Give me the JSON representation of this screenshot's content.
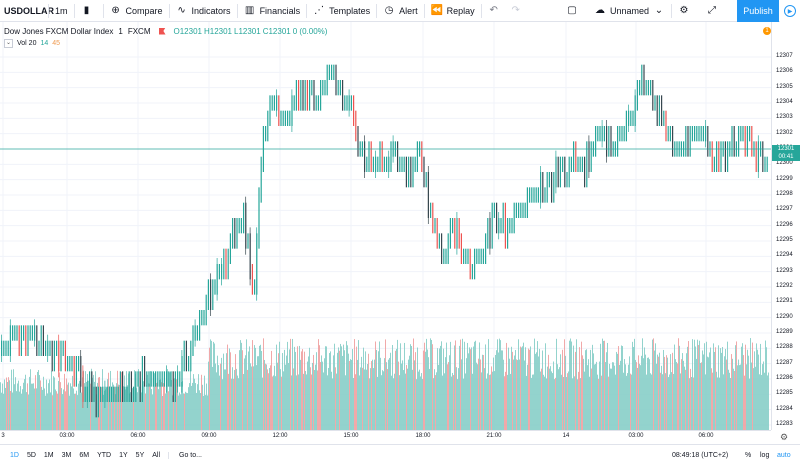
{
  "toolbar": {
    "symbol": "USDOLLAR",
    "interval": "1m",
    "compare": "Compare",
    "indicators": "Indicators",
    "financials": "Financials",
    "templates": "Templates",
    "alert": "Alert",
    "replay": "Replay",
    "layout_name": "Unnamed",
    "publish": "Publish"
  },
  "legend": {
    "title": "Dow Jones FXCM Dollar Index",
    "interval": "1",
    "source": "FXCM",
    "open": "O12301",
    "high": "H12301",
    "low": "L12301",
    "close": "C12301",
    "change": "0 (0.00%)"
  },
  "volume_legend": {
    "name": "Vol 20",
    "value1": "14",
    "value2": "45"
  },
  "alert_badge": "1",
  "price_label": "12301",
  "countdown": "00:41",
  "colors": {
    "up": "#26a69a",
    "down": "#ef5350",
    "volume_up": "#80cbc4",
    "volume_down": "#ef9a9a",
    "accent": "#2196f3",
    "grid": "#f0f3fa"
  },
  "chart_data": {
    "type": "candlestick",
    "y_axis_ticks": [
      "12307",
      "12306",
      "12305",
      "12304",
      "12303",
      "12302",
      "12301",
      "12300",
      "12299",
      "12298",
      "12297",
      "12296",
      "12295",
      "12294",
      "12293",
      "12292",
      "12291",
      "12290",
      "12289",
      "12288",
      "12287",
      "12286",
      "12285",
      "12284",
      "12283"
    ],
    "x_axis_ticks": [
      "3",
      "03:00",
      "06:00",
      "09:00",
      "12:00",
      "15:00",
      "18:00",
      "21:00",
      "14",
      "03:00",
      "06:00"
    ],
    "ylim": [
      12283,
      12307
    ],
    "current_price": 12301,
    "price_path": [
      [
        0,
        12288
      ],
      [
        0.03,
        12289
      ],
      [
        0.06,
        12288
      ],
      [
        0.09,
        12287
      ],
      [
        0.12,
        12285
      ],
      [
        0.15,
        12285
      ],
      [
        0.18,
        12286
      ],
      [
        0.21,
        12286
      ],
      [
        0.23,
        12286
      ],
      [
        0.245,
        12288
      ],
      [
        0.26,
        12290
      ],
      [
        0.28,
        12292
      ],
      [
        0.3,
        12295
      ],
      [
        0.315,
        12297
      ],
      [
        0.33,
        12291
      ],
      [
        0.34,
        12301
      ],
      [
        0.355,
        12304
      ],
      [
        0.37,
        12303
      ],
      [
        0.39,
        12305
      ],
      [
        0.41,
        12304
      ],
      [
        0.43,
        12306
      ],
      [
        0.45,
        12304
      ],
      [
        0.47,
        12301
      ],
      [
        0.49,
        12300
      ],
      [
        0.51,
        12301
      ],
      [
        0.53,
        12299
      ],
      [
        0.545,
        12301
      ],
      [
        0.56,
        12297
      ],
      [
        0.575,
        12294
      ],
      [
        0.59,
        12296
      ],
      [
        0.61,
        12293
      ],
      [
        0.625,
        12294
      ],
      [
        0.64,
        12296
      ],
      [
        0.66,
        12296
      ],
      [
        0.68,
        12297
      ],
      [
        0.7,
        12298
      ],
      [
        0.72,
        12299
      ],
      [
        0.74,
        12300
      ],
      [
        0.76,
        12300
      ],
      [
        0.78,
        12302
      ],
      [
        0.8,
        12301
      ],
      [
        0.82,
        12303
      ],
      [
        0.835,
        12306
      ],
      [
        0.85,
        12304
      ],
      [
        0.87,
        12302
      ],
      [
        0.89,
        12301
      ],
      [
        0.91,
        12302
      ],
      [
        0.93,
        12300
      ],
      [
        0.95,
        12301
      ],
      [
        0.965,
        12302
      ],
      [
        0.98,
        12301
      ],
      [
        1.0,
        12300
      ]
    ]
  },
  "time_ranges": [
    "1D",
    "5D",
    "1M",
    "3M",
    "6M",
    "YTD",
    "1Y",
    "5Y",
    "All"
  ],
  "active_range": "1D",
  "goto": "Go to...",
  "clock": "08:49:18 (UTC+2)",
  "pct": "%",
  "log": "log",
  "auto": "auto"
}
